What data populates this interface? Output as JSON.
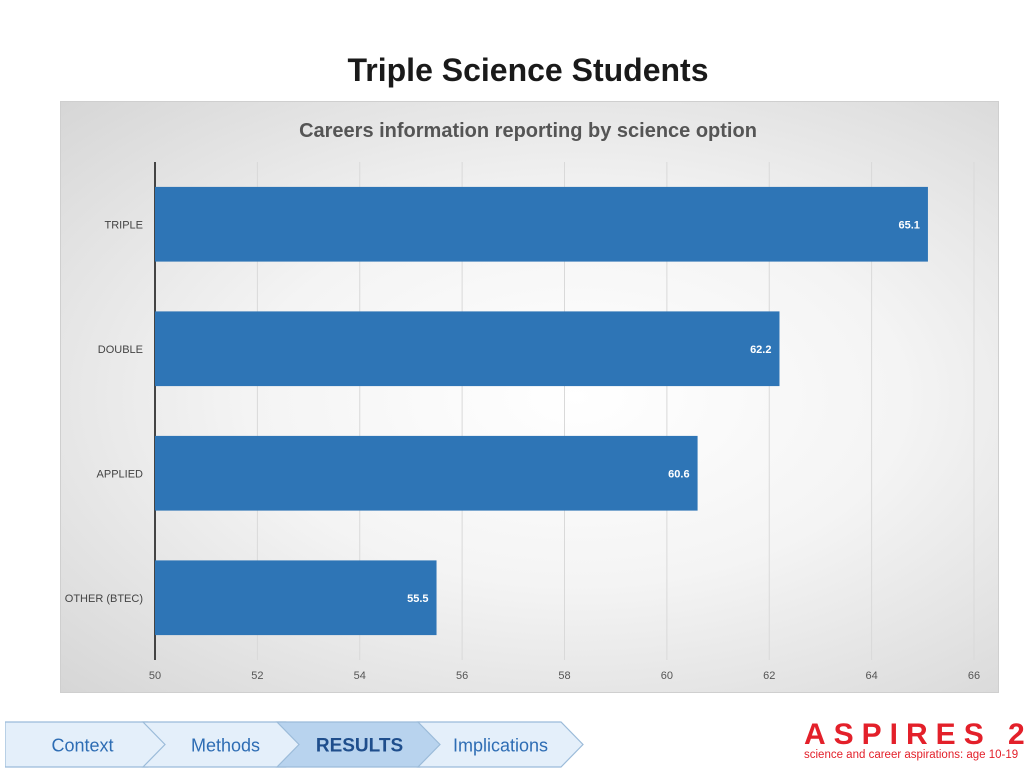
{
  "slide": {
    "title": "Triple Science Students"
  },
  "colors": {
    "bar": "#2e75b6",
    "accent": "#e3202a",
    "nav_active": "#1f4e8c",
    "nav_text": "#2e6db4"
  },
  "chart_data": {
    "type": "bar",
    "orientation": "horizontal",
    "title": "Careers information reporting by science option",
    "categories": [
      "TRIPLE",
      "DOUBLE",
      "APPLIED",
      "OTHER (BTEC)"
    ],
    "values": [
      65.1,
      62.2,
      60.6,
      55.5
    ],
    "value_labels": [
      "65.1",
      "62.2",
      "60.6",
      "55.5"
    ],
    "xlim": [
      50,
      66
    ],
    "xticks": [
      50,
      52,
      54,
      56,
      58,
      60,
      62,
      64,
      66
    ],
    "xtick_labels": [
      "50",
      "52",
      "54",
      "56",
      "58",
      "60",
      "62",
      "64",
      "66"
    ],
    "grid": true,
    "legend": "none"
  },
  "nav": {
    "steps": [
      {
        "label": "Context",
        "active": false
      },
      {
        "label": "Methods",
        "active": false
      },
      {
        "label": "RESULTS",
        "active": true
      },
      {
        "label": "Implications",
        "active": false
      }
    ]
  },
  "logo": {
    "wordmark": "ASPIRES 2",
    "tagline": "science and career aspirations: age 10-19"
  }
}
